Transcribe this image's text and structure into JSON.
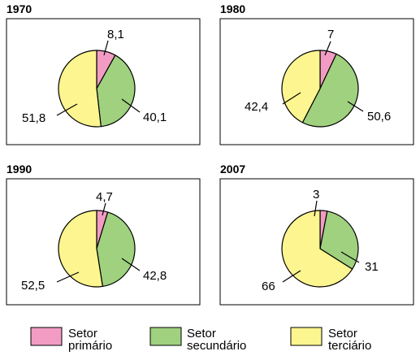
{
  "chart_data": [
    {
      "type": "pie",
      "title": "1970",
      "categories": [
        "Setor primário",
        "Setor secundário",
        "Setor terciário"
      ],
      "values": [
        8.1,
        40.1,
        51.8
      ],
      "labels": [
        "8,1",
        "40,1",
        "51,8"
      ]
    },
    {
      "type": "pie",
      "title": "1980",
      "categories": [
        "Setor primário",
        "Setor secundário",
        "Setor terciário"
      ],
      "values": [
        7,
        50.6,
        42.4
      ],
      "labels": [
        "7",
        "50,6",
        "42,4"
      ]
    },
    {
      "type": "pie",
      "title": "1990",
      "categories": [
        "Setor primário",
        "Setor secundário",
        "Setor terciário"
      ],
      "values": [
        4.7,
        42.8,
        52.5
      ],
      "labels": [
        "4,7",
        "42,8",
        "52,5"
      ]
    },
    {
      "type": "pie",
      "title": "2007",
      "categories": [
        "Setor primário",
        "Setor secundário",
        "Setor terciário"
      ],
      "values": [
        3,
        31,
        66
      ],
      "labels": [
        "3",
        "31",
        "66"
      ]
    }
  ],
  "legend": {
    "placement": "bottom",
    "items": [
      {
        "line1": "Setor",
        "line2": "primário",
        "color": "#f29cc4"
      },
      {
        "line1": "Setor",
        "line2": "secundário",
        "color": "#9fd17f"
      },
      {
        "line1": "Setor",
        "line2": "terciário",
        "color": "#fdf58f"
      }
    ]
  }
}
